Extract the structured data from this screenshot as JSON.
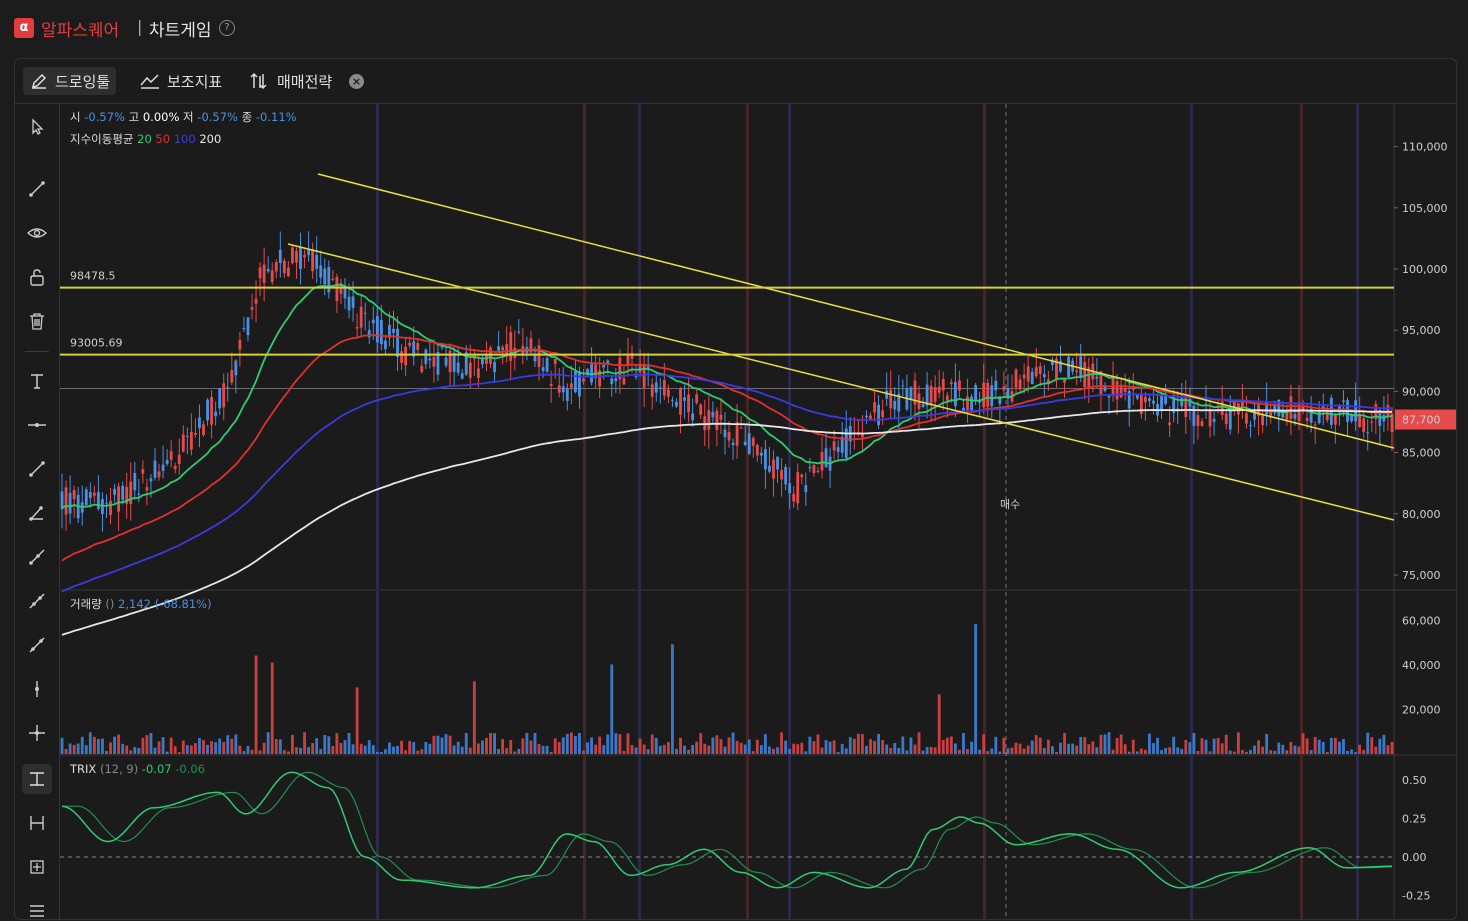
{
  "header": {
    "logo_letter": "α",
    "brand": "알파스퀘어",
    "separator": "|",
    "title": "차트게임",
    "help": "?"
  },
  "toolbar": {
    "drawing_tool": "드로잉툴",
    "indicators": "보조지표",
    "strategy": "매매전략",
    "close": "×"
  },
  "legend": {
    "ohlc": {
      "open_label": "시",
      "open": "-0.57%",
      "high_label": "고",
      "high": "0.00%",
      "low_label": "저",
      "low": "-0.57%",
      "close_label": "종",
      "close": "-0.11%"
    },
    "ema": {
      "label": "지수이동평균",
      "p20": "20",
      "p50": "50",
      "p100": "100",
      "p200": "200"
    },
    "volume": {
      "label": "거래량",
      "paren": "()",
      "value": "2,142 (-68.81%)"
    },
    "trix": {
      "label": "TRIX",
      "params": "(12, 9)",
      "v1": "-0.07",
      "v2": "-0.06"
    }
  },
  "price_axis": [
    "110,000",
    "105,000",
    "100,000",
    "95,000",
    "90,000",
    "85,000",
    "80,000",
    "75,000"
  ],
  "volume_axis": [
    "60,000",
    "40,000",
    "20,000"
  ],
  "trix_axis": [
    "0.50",
    "0.25",
    "0.00",
    "-0.25"
  ],
  "current_price": "87,700",
  "hlines": [
    "98478.5",
    "93005.69"
  ],
  "trade_marker": "매수",
  "colors": {
    "up": "#e64a4a",
    "down": "#4a90e2",
    "ema20": "#2ecc71",
    "ema50": "#e03030",
    "ema100": "#3a3adf",
    "ema200": "#e8e8e8",
    "trendline": "#e6e03a",
    "hline": "#d8d040",
    "brand": "#e23c3c"
  },
  "chart_data": {
    "type": "candlestick",
    "price_range": [
      75000,
      110000
    ],
    "horizontal_lines": [
      98478.5,
      93005.69
    ],
    "current_price": 87700,
    "ema_periods": [
      20,
      50,
      100,
      200
    ],
    "trix_range": [
      -0.25,
      0.5
    ]
  }
}
